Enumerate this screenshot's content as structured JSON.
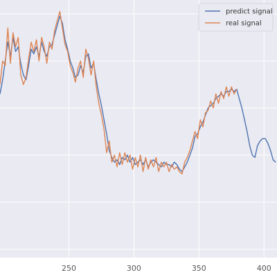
{
  "chart_data": {
    "type": "line",
    "title": "",
    "xlabel": "",
    "ylabel": "",
    "xlim": [
      197,
      410
    ],
    "ylim": [
      0,
      1
    ],
    "grid": true,
    "legend_position": "top-right",
    "x_tick_labels": [
      "250",
      "300",
      "350",
      "400"
    ],
    "x_ticks": [
      250,
      300,
      350,
      400
    ],
    "y_gridlines": [
      0.0,
      0.2,
      0.4,
      0.6,
      0.8,
      1.0
    ],
    "colors": {
      "background": "#EAEAF2",
      "grid": "#FFFFFF",
      "predict": "#4C72B0",
      "real": "#DD8452"
    },
    "series": [
      {
        "name": "predict signal",
        "color": "#4C72B0",
        "x": [
          197,
          199,
          201,
          203,
          205,
          207,
          209,
          211,
          213,
          215,
          217,
          219,
          221,
          223,
          225,
          227,
          229,
          231,
          233,
          235,
          237,
          239,
          241,
          243,
          245,
          247,
          249,
          251,
          253,
          255,
          257,
          259,
          261,
          263,
          265,
          267,
          269,
          271,
          273,
          275,
          277,
          279,
          281,
          283,
          285,
          287,
          289,
          291,
          293,
          295,
          297,
          299,
          301,
          303,
          305,
          307,
          309,
          311,
          313,
          315,
          317,
          319,
          321,
          323,
          325,
          327,
          329,
          331,
          333,
          335,
          337,
          339,
          341,
          343,
          345,
          347,
          349,
          351,
          353,
          355,
          357,
          359,
          361,
          363,
          365,
          367,
          369,
          371,
          373,
          375,
          377,
          379,
          381,
          383,
          385,
          387,
          389,
          391,
          393,
          395,
          397,
          399,
          401,
          403,
          405,
          407,
          409
        ],
        "y": [
          0.66,
          0.72,
          0.8,
          0.88,
          0.82,
          0.9,
          0.84,
          0.86,
          0.79,
          0.74,
          0.72,
          0.78,
          0.85,
          0.83,
          0.86,
          0.82,
          0.88,
          0.84,
          0.82,
          0.86,
          0.87,
          0.91,
          0.95,
          0.99,
          0.96,
          0.89,
          0.85,
          0.8,
          0.77,
          0.73,
          0.74,
          0.78,
          0.75,
          0.82,
          0.83,
          0.77,
          0.79,
          0.72,
          0.66,
          0.61,
          0.55,
          0.49,
          0.42,
          0.39,
          0.37,
          0.38,
          0.36,
          0.39,
          0.38,
          0.4,
          0.37,
          0.39,
          0.36,
          0.37,
          0.38,
          0.36,
          0.38,
          0.35,
          0.37,
          0.38,
          0.37,
          0.36,
          0.35,
          0.37,
          0.36,
          0.36,
          0.35,
          0.37,
          0.36,
          0.34,
          0.33,
          0.35,
          0.37,
          0.4,
          0.43,
          0.48,
          0.49,
          0.52,
          0.54,
          0.57,
          0.6,
          0.61,
          0.62,
          0.64,
          0.65,
          0.66,
          0.65,
          0.67,
          0.67,
          0.68,
          0.67,
          0.68,
          0.64,
          0.6,
          0.55,
          0.5,
          0.44,
          0.4,
          0.39,
          0.44,
          0.46,
          0.47,
          0.47,
          0.45,
          0.42,
          0.38,
          0.37
        ]
      },
      {
        "name": "real signal",
        "color": "#DD8452",
        "x": [
          197,
          199,
          201,
          203,
          205,
          207,
          209,
          211,
          213,
          215,
          217,
          219,
          221,
          223,
          225,
          227,
          229,
          231,
          233,
          235,
          237,
          239,
          241,
          243,
          245,
          247,
          249,
          251,
          253,
          255,
          257,
          259,
          261,
          263,
          265,
          267,
          269,
          271,
          273,
          275,
          277,
          279,
          281,
          283,
          285,
          287,
          289,
          291,
          293,
          295,
          297,
          299,
          301,
          303,
          305,
          307,
          309,
          311,
          313,
          315,
          317,
          319,
          321,
          323,
          325,
          327,
          329,
          331,
          333,
          335,
          337,
          339,
          341,
          343,
          345,
          347,
          349,
          351,
          353,
          355,
          357,
          359,
          361,
          363,
          365,
          367,
          369,
          371,
          373,
          375,
          377,
          379
        ],
        "y": [
          0.7,
          0.8,
          0.78,
          0.94,
          0.79,
          0.92,
          0.86,
          0.9,
          0.74,
          0.7,
          0.73,
          0.81,
          0.88,
          0.84,
          0.89,
          0.8,
          0.9,
          0.86,
          0.79,
          0.88,
          0.85,
          0.93,
          0.97,
          1.01,
          0.94,
          0.87,
          0.84,
          0.78,
          0.75,
          0.71,
          0.77,
          0.8,
          0.73,
          0.85,
          0.81,
          0.74,
          0.8,
          0.69,
          0.62,
          0.57,
          0.51,
          0.41,
          0.46,
          0.37,
          0.4,
          0.35,
          0.41,
          0.36,
          0.41,
          0.37,
          0.4,
          0.34,
          0.39,
          0.35,
          0.4,
          0.33,
          0.39,
          0.34,
          0.38,
          0.35,
          0.39,
          0.33,
          0.37,
          0.35,
          0.37,
          0.33,
          0.36,
          0.34,
          0.35,
          0.33,
          0.32,
          0.37,
          0.39,
          0.42,
          0.46,
          0.5,
          0.47,
          0.55,
          0.52,
          0.58,
          0.59,
          0.63,
          0.6,
          0.66,
          0.62,
          0.67,
          0.64,
          0.69,
          0.65,
          0.69,
          0.66,
          0.68
        ]
      }
    ]
  }
}
